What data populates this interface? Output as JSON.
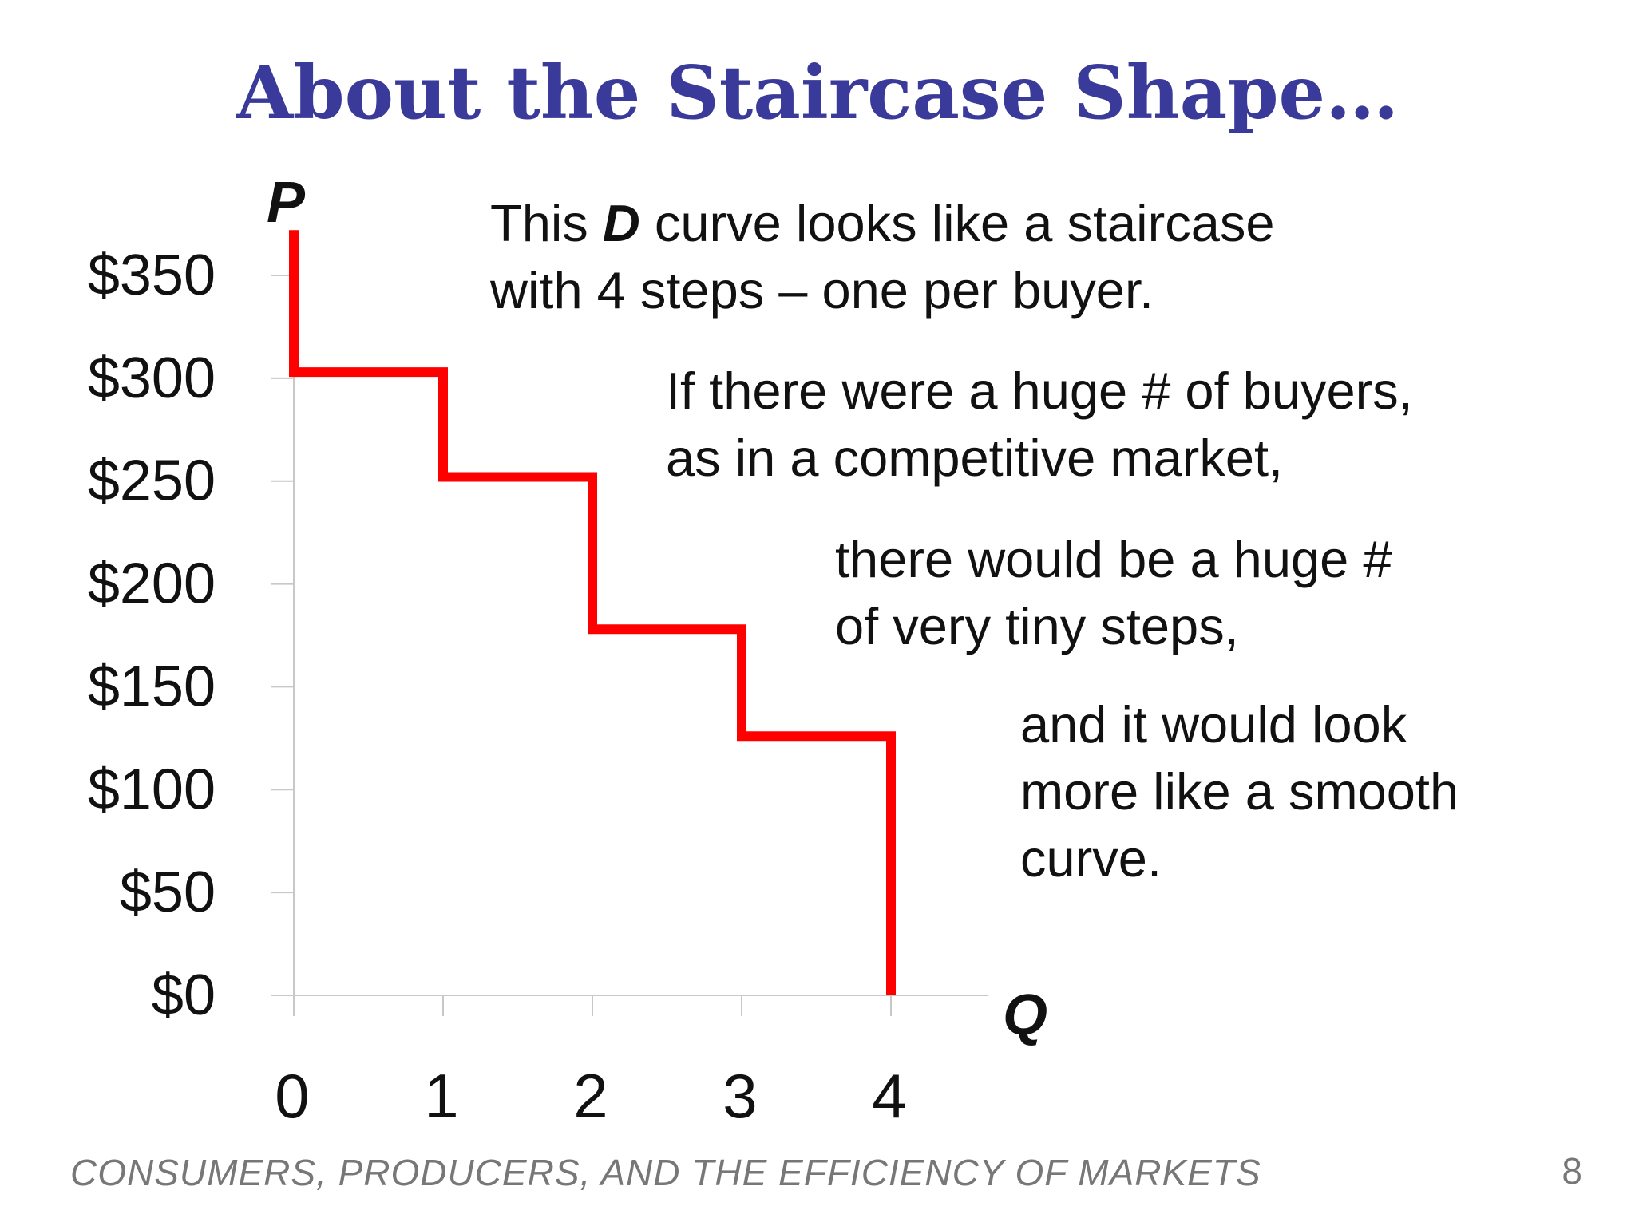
{
  "slide": {
    "title": "About the Staircase Shape…",
    "notes": [
      {
        "before": "This ",
        "emph": "D",
        "after": " curve looks like a staircase",
        "line2": "with 4 steps – one per buyer."
      },
      {
        "line1": "If there were a huge # of buyers,",
        "line2": "as in a competitive market,"
      },
      {
        "line1": "there would be a huge #",
        "line2": "of very tiny steps,"
      },
      {
        "line1": "and it would look",
        "line2": "more like a smooth",
        "line3": "curve."
      }
    ],
    "footer": "CONSUMERS, PRODUCERS, AND THE EFFICIENCY OF MARKETS",
    "page_number": "8"
  },
  "chart_data": {
    "type": "line",
    "step": true,
    "xlabel": "Q",
    "ylabel": "P",
    "x_ticks": [
      "0",
      "1",
      "2",
      "3",
      "4"
    ],
    "y_ticks": [
      "$0",
      "$50",
      "$100",
      "$150",
      "$200",
      "$250",
      "$300",
      "$350"
    ],
    "y_tick_values": [
      0,
      50,
      100,
      150,
      200,
      250,
      300,
      350
    ],
    "xlim": [
      0,
      4.6
    ],
    "ylim": [
      0,
      350
    ],
    "series": [
      {
        "color": "#ff0000",
        "points": [
          [
            0,
            372
          ],
          [
            0,
            303
          ],
          [
            1,
            303
          ],
          [
            1,
            252
          ],
          [
            2,
            252
          ],
          [
            2,
            178
          ],
          [
            3,
            178
          ],
          [
            3,
            126
          ],
          [
            4,
            126
          ],
          [
            4,
            0
          ]
        ]
      }
    ]
  }
}
